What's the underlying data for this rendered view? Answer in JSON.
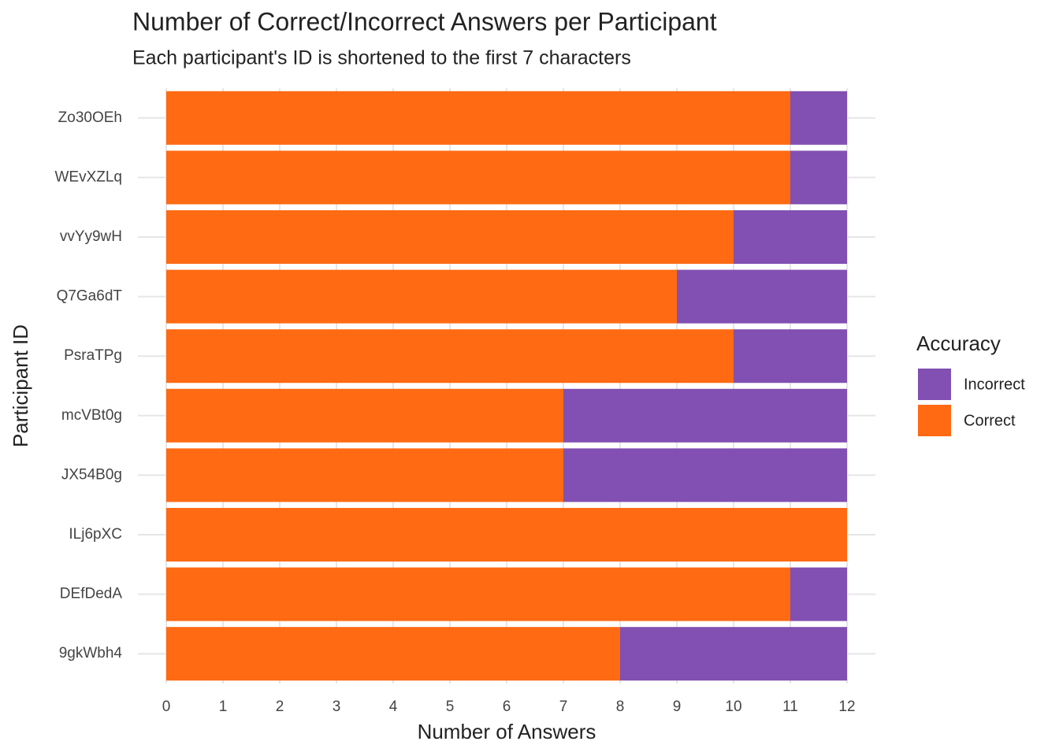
{
  "chart_data": {
    "type": "stacked_bar_horizontal",
    "title": "Number of Correct/Incorrect Answers per Participant",
    "subtitle": "Each participant's ID is shortened to the first 7 characters",
    "x_label": "Number of Answers",
    "y_label": "Participant ID",
    "legend_title": "Accuracy",
    "categories": [
      "Zo30OEh",
      "WEvXZLq",
      "vvYy9wH",
      "Q7Ga6dT",
      "PsraTPg",
      "mcVBt0g",
      "JX54B0g",
      "ILj6pXC",
      "DEfDedA",
      "9gkWbh4"
    ],
    "series": [
      {
        "name": "Correct",
        "color": "#ff6a13",
        "values": [
          11,
          11,
          10,
          9,
          10,
          7,
          7,
          12,
          11,
          8
        ],
        "value_labels": [
          "11",
          "11",
          "10",
          "9",
          "10",
          "7",
          "7",
          null,
          "11",
          "8"
        ]
      },
      {
        "name": "Incorrect",
        "color": "#8150b2",
        "values": [
          1,
          1,
          2,
          3,
          2,
          5,
          5,
          0,
          1,
          4
        ]
      }
    ],
    "xlim": [
      -0.5,
      12.5
    ],
    "xticks": [
      0,
      1,
      2,
      3,
      4,
      5,
      6,
      7,
      8,
      9,
      10,
      11,
      12
    ],
    "grid": true
  }
}
